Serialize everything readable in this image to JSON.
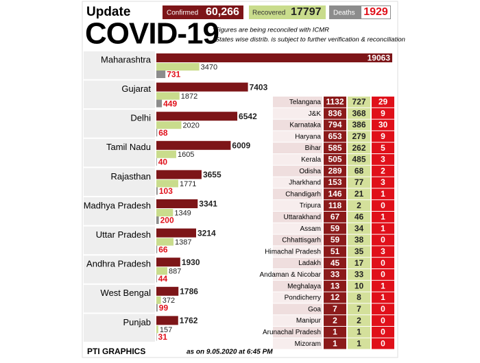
{
  "header": {
    "update": "Update",
    "title": "COVID-19",
    "confirmed_label": "Confirmed",
    "confirmed": "60,266",
    "recovered_label": "Recovered",
    "recovered": "17797",
    "deaths_label": "Deaths",
    "deaths": "1929",
    "notes": [
      "*Figures are being reconciled with ICMR",
      "*States wise distrib. is subject to further verification & reconciliation"
    ]
  },
  "chart_data": {
    "type": "bar",
    "orientation": "horizontal",
    "categories": [
      "Maharashtra",
      "Gujarat",
      "Delhi",
      "Tamil Nadu",
      "Rajasthan",
      "Madhya Pradesh",
      "Uttar Pradesh",
      "Andhra Pradesh",
      "West Bengal",
      "Punjab"
    ],
    "series": [
      {
        "name": "Confirmed",
        "color": "#7d1518",
        "values": [
          19063,
          7403,
          6542,
          6009,
          3655,
          3341,
          3214,
          1930,
          1786,
          1762
        ]
      },
      {
        "name": "Recovered",
        "color": "#c9dc8c",
        "values": [
          3470,
          1872,
          2020,
          1605,
          1771,
          1349,
          1387,
          887,
          372,
          157
        ]
      },
      {
        "name": "Deaths",
        "color": "#8c8c8c",
        "values": [
          731,
          449,
          68,
          40,
          103,
          200,
          66,
          44,
          99,
          31
        ]
      }
    ]
  },
  "table": {
    "rows": [
      [
        "Telangana",
        1132,
        727,
        29
      ],
      [
        "J&K",
        836,
        368,
        9
      ],
      [
        "Karnataka",
        794,
        386,
        30
      ],
      [
        "Haryana",
        653,
        279,
        9
      ],
      [
        "Bihar",
        585,
        262,
        5
      ],
      [
        "Kerala",
        505,
        485,
        3
      ],
      [
        "Odisha",
        289,
        68,
        2
      ],
      [
        "Jharkhand",
        153,
        77,
        3
      ],
      [
        "Chandigarh",
        146,
        21,
        1
      ],
      [
        "Tripura",
        118,
        2,
        0
      ],
      [
        "Uttarakhand",
        67,
        46,
        1
      ],
      [
        "Assam",
        59,
        34,
        1
      ],
      [
        "Chhattisgarh",
        59,
        38,
        0
      ],
      [
        "Himachal Pradesh",
        51,
        35,
        3
      ],
      [
        "Ladakh",
        45,
        17,
        0
      ],
      [
        "Andaman & Nicobar",
        33,
        33,
        0
      ],
      [
        "Meghalaya",
        13,
        10,
        1
      ],
      [
        "Pondicherry",
        12,
        8,
        1
      ],
      [
        "Goa",
        7,
        7,
        0
      ],
      [
        "Manipur",
        2,
        2,
        0
      ],
      [
        "Arunachal Pradesh",
        1,
        1,
        0
      ],
      [
        "Mizoram",
        1,
        1,
        0
      ]
    ]
  },
  "footer": {
    "brand": "PTI GRAPHICS",
    "date": "as on 9.05.2020 at 6:45 PM"
  }
}
